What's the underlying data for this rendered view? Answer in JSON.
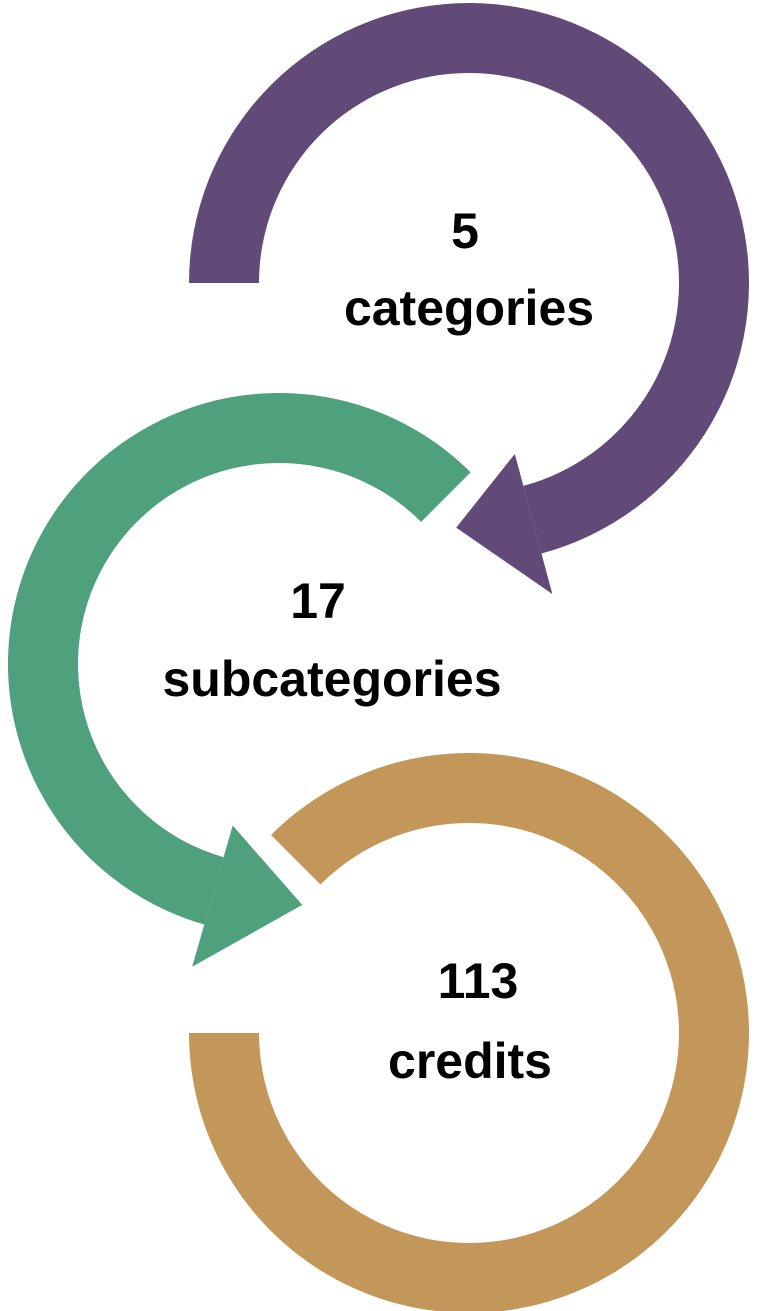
{
  "nodes": [
    {
      "number": "5",
      "label": "categories",
      "color": "#614a78"
    },
    {
      "number": "17",
      "label": "subcategories",
      "color": "#4fa07c"
    },
    {
      "number": "113",
      "label": "credits",
      "color": "#c29759"
    }
  ]
}
